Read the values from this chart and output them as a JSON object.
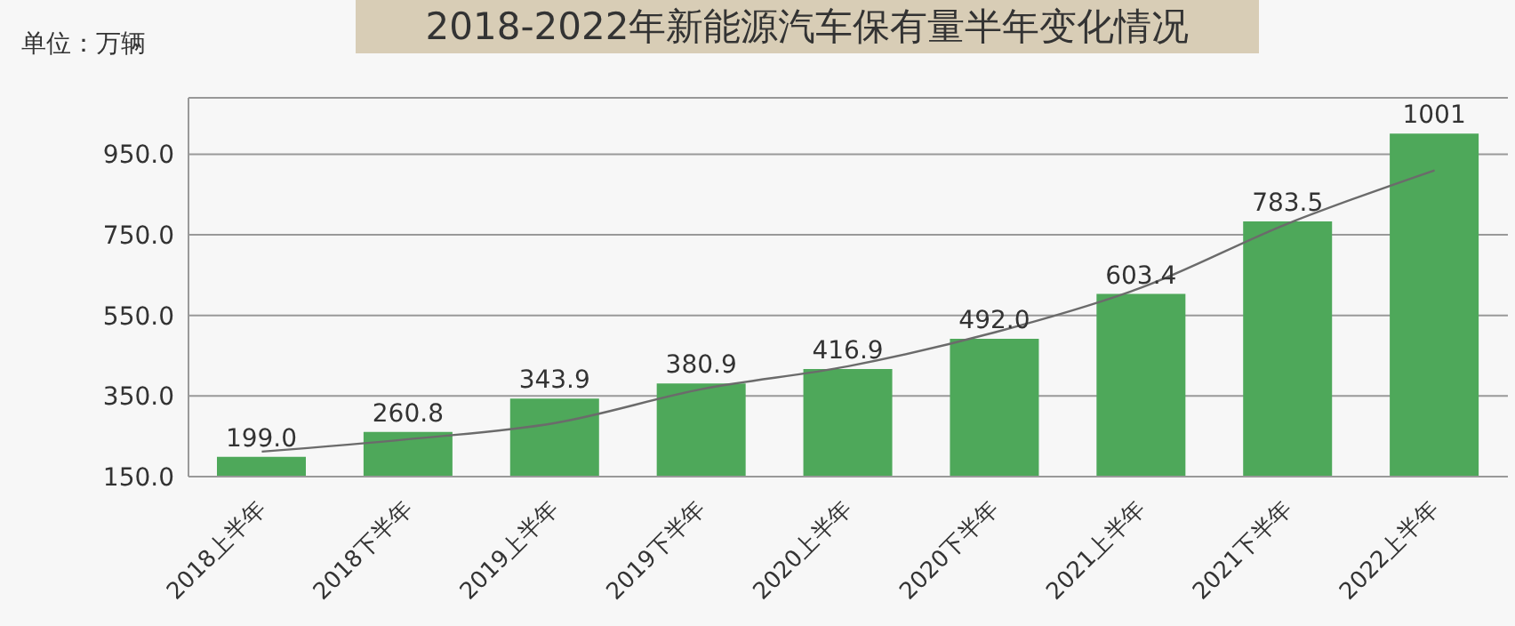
{
  "chart_data": {
    "type": "bar",
    "title": "2018-2022年新能源汽车保有量半年变化情况",
    "ylabel": "单位：万辆",
    "categories": [
      "2018上半年",
      "2018下半年",
      "2019上半年",
      "2019下半年",
      "2020上半年",
      "2020下半年",
      "2021上半年",
      "2021下半年",
      "2022上半年"
    ],
    "series": [
      {
        "color": "#4ea85a",
        "values": [
          199.0,
          260.8,
          343.9,
          380.9,
          416.9,
          492.0,
          603.4,
          783.5,
          1001
        ],
        "value_labels": [
          "199.0",
          "260.8",
          "343.9",
          "380.9",
          "416.9",
          "492.0",
          "603.4",
          "783.5",
          "1001"
        ]
      },
      {
        "type": "line",
        "color": "#6b6b6b",
        "values": [
          212,
          243,
          283,
          367,
          424,
          508,
          619,
          778,
          910
        ]
      }
    ],
    "ylim": [
      150,
      1090
    ],
    "yticks": [
      {
        "value": 150,
        "label": "150.0"
      },
      {
        "value": 350,
        "label": "350.0"
      },
      {
        "value": 550,
        "label": "550.0"
      },
      {
        "value": 750,
        "label": "750.0"
      },
      {
        "value": 950,
        "label": "950.0"
      }
    ],
    "grid": "y",
    "legend": false,
    "marker": "none"
  }
}
